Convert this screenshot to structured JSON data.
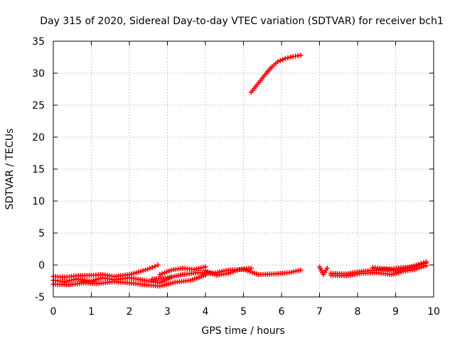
{
  "chart_data": {
    "type": "scatter",
    "title": "Day 315 of 2020, Sidereal Day-to-day VTEC variation (SDTVAR) for receiver bch1",
    "xlabel": "GPS time / hours",
    "ylabel": "SDTVAR / TECUs",
    "xlim": [
      0,
      10
    ],
    "ylim": [
      -5,
      35
    ],
    "xticks": [
      0,
      1,
      2,
      3,
      4,
      5,
      6,
      7,
      8,
      9,
      10
    ],
    "yticks": [
      -5,
      0,
      5,
      10,
      15,
      20,
      25,
      30,
      35
    ],
    "grid": true,
    "legend": "none",
    "marker": "plus",
    "color": "#ff0000",
    "series": [
      {
        "x": [
          5.2,
          5.4,
          5.6,
          5.75,
          5.9,
          6.1,
          6.3,
          6.5
        ],
        "y": [
          27,
          28.5,
          30,
          31,
          31.8,
          32.3,
          32.6,
          32.8
        ]
      },
      {
        "x": [
          0,
          0.3,
          0.6,
          1.0,
          1.3,
          1.6,
          2.0,
          2.3,
          2.6,
          2.75
        ],
        "y": [
          -1.8,
          -1.9,
          -1.7,
          -1.6,
          -1.5,
          -1.8,
          -1.5,
          -1.0,
          -0.4,
          0
        ]
      },
      {
        "x": [
          0,
          0.3,
          0.6,
          1.0,
          1.3,
          1.6,
          2.0,
          2.4,
          2.8,
          3.1
        ],
        "y": [
          -2.4,
          -2.6,
          -2.2,
          -2.5,
          -2.0,
          -2.3,
          -2.0,
          -2.4,
          -2.8,
          -1.9
        ]
      },
      {
        "x": [
          0,
          0.4,
          0.8,
          1.2,
          1.6,
          2.0,
          2.4,
          2.8,
          3.2,
          3.6,
          4.0
        ],
        "y": [
          -3.0,
          -3.1,
          -2.8,
          -2.9,
          -2.6,
          -2.8,
          -3.1,
          -3.3,
          -2.7,
          -2.4,
          -1.6
        ]
      },
      {
        "x": [
          2.8,
          3.1,
          3.4,
          3.7,
          4.0
        ],
        "y": [
          -1.5,
          -0.8,
          -0.5,
          -0.7,
          -0.3
        ]
      },
      {
        "x": [
          2.6,
          3.0,
          3.4,
          3.8,
          4.2,
          4.6,
          5.0,
          5.4,
          5.8,
          6.2,
          6.5
        ],
        "y": [
          -2.2,
          -2.0,
          -1.5,
          -1.2,
          -1.3,
          -0.8,
          -0.7,
          -1.5,
          -1.4,
          -1.2,
          -0.8
        ]
      },
      {
        "x": [
          4.0,
          4.3,
          4.6,
          4.9,
          5.2
        ],
        "y": [
          -0.9,
          -1.6,
          -1.3,
          -0.7,
          -0.5
        ]
      },
      {
        "x": [
          7.0,
          7.1,
          7.2
        ],
        "y": [
          -0.3,
          -1.5,
          -0.5
        ]
      },
      {
        "x": [
          7.3,
          7.7,
          8.1,
          8.5,
          8.9,
          9.2,
          9.5,
          9.8
        ],
        "y": [
          -1.3,
          -1.4,
          -1.0,
          -0.8,
          -0.6,
          -0.4,
          -0.3,
          0.3
        ]
      },
      {
        "x": [
          7.3,
          7.7,
          8.1,
          8.5,
          8.9,
          9.2,
          9.5,
          9.8
        ],
        "y": [
          -1.6,
          -1.7,
          -1.3,
          -1.2,
          -1.5,
          -1.0,
          -0.7,
          -0.1
        ]
      },
      {
        "x": [
          8.4,
          8.7,
          9.0,
          9.3,
          9.6,
          9.8
        ],
        "y": [
          -0.4,
          -0.6,
          -0.9,
          -0.5,
          0.1,
          0.5
        ]
      }
    ]
  }
}
